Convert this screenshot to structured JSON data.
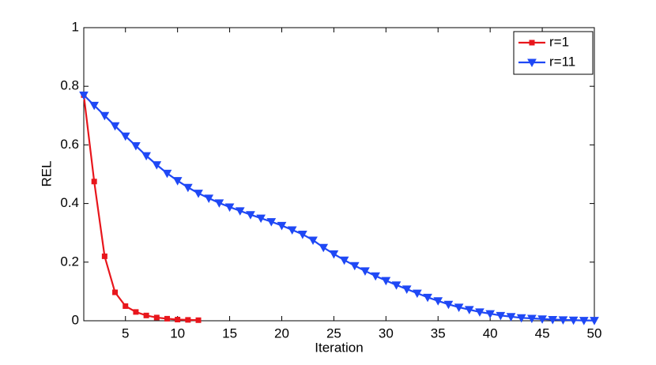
{
  "chart_data": {
    "type": "line",
    "x_label": "Iteration",
    "y_label": "REL",
    "xlim": [
      1,
      50
    ],
    "xticks": [
      5,
      10,
      15,
      20,
      25,
      30,
      35,
      40,
      45,
      50
    ],
    "ylim": [
      0,
      1
    ],
    "yticks": [
      0,
      0.2,
      0.4,
      0.6,
      0.8,
      1
    ],
    "legend": "northeast",
    "series": [
      {
        "name": "r=1",
        "color": "#e8161c",
        "marker": "square",
        "x": [
          1,
          2,
          3,
          4,
          5,
          6,
          7,
          8,
          9,
          10,
          11,
          12
        ],
        "values": [
          0.77,
          0.475,
          0.22,
          0.097,
          0.05,
          0.03,
          0.018,
          0.011,
          0.007,
          0.004,
          0.003,
          0.002
        ]
      },
      {
        "name": "r=11",
        "color": "#1f48f5",
        "marker": "triangle-down",
        "x": [
          1,
          2,
          3,
          4,
          5,
          6,
          7,
          8,
          9,
          10,
          11,
          12,
          13,
          14,
          15,
          16,
          17,
          18,
          19,
          20,
          21,
          22,
          23,
          24,
          25,
          26,
          27,
          28,
          29,
          30,
          31,
          32,
          33,
          34,
          35,
          36,
          37,
          38,
          39,
          40,
          41,
          42,
          43,
          44,
          45,
          46,
          47,
          48,
          49,
          50
        ],
        "values": [
          0.77,
          0.735,
          0.7,
          0.665,
          0.63,
          0.597,
          0.563,
          0.532,
          0.503,
          0.478,
          0.455,
          0.435,
          0.418,
          0.402,
          0.388,
          0.375,
          0.362,
          0.35,
          0.338,
          0.325,
          0.31,
          0.295,
          0.275,
          0.25,
          0.228,
          0.207,
          0.188,
          0.17,
          0.153,
          0.137,
          0.122,
          0.108,
          0.094,
          0.08,
          0.068,
          0.056,
          0.046,
          0.038,
          0.03,
          0.024,
          0.018,
          0.014,
          0.01,
          0.008,
          0.006,
          0.004,
          0.003,
          0.002,
          0.001,
          0.001
        ]
      }
    ]
  }
}
